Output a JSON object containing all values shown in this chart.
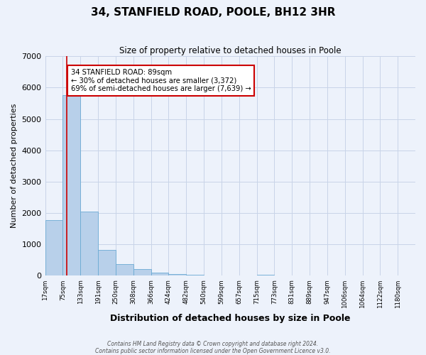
{
  "title": "34, STANFIELD ROAD, POOLE, BH12 3HR",
  "subtitle": "Size of property relative to detached houses in Poole",
  "xlabel": "Distribution of detached houses by size in Poole",
  "ylabel": "Number of detached properties",
  "bin_labels": [
    "17sqm",
    "75sqm",
    "133sqm",
    "191sqm",
    "250sqm",
    "308sqm",
    "366sqm",
    "424sqm",
    "482sqm",
    "540sqm",
    "599sqm",
    "657sqm",
    "715sqm",
    "773sqm",
    "831sqm",
    "889sqm",
    "947sqm",
    "1006sqm",
    "1064sqm",
    "1122sqm",
    "1180sqm"
  ],
  "bar_heights": [
    1780,
    5750,
    2050,
    830,
    370,
    220,
    110,
    60,
    30,
    10,
    0,
    0,
    40,
    0,
    0,
    0,
    0,
    0,
    0,
    0,
    0
  ],
  "bar_color": "#b8d0ea",
  "bar_edge_color": "#6aaad4",
  "ylim": [
    0,
    7000
  ],
  "yticks": [
    0,
    1000,
    2000,
    3000,
    4000,
    5000,
    6000,
    7000
  ],
  "property_label": "34 STANFIELD ROAD: 89sqm",
  "pct_smaller": "30% of detached houses are smaller (3,372)",
  "pct_larger": "69% of semi-detached houses are larger (7,639)",
  "annotation_box_color": "#ffffff",
  "annotation_box_edge_color": "#cc0000",
  "vline_color": "#cc0000",
  "bg_color": "#edf2fb",
  "grid_color": "#c8d4e8",
  "footnote1": "Contains HM Land Registry data © Crown copyright and database right 2024.",
  "footnote2": "Contains public sector information licensed under the Open Government Licence v3.0."
}
